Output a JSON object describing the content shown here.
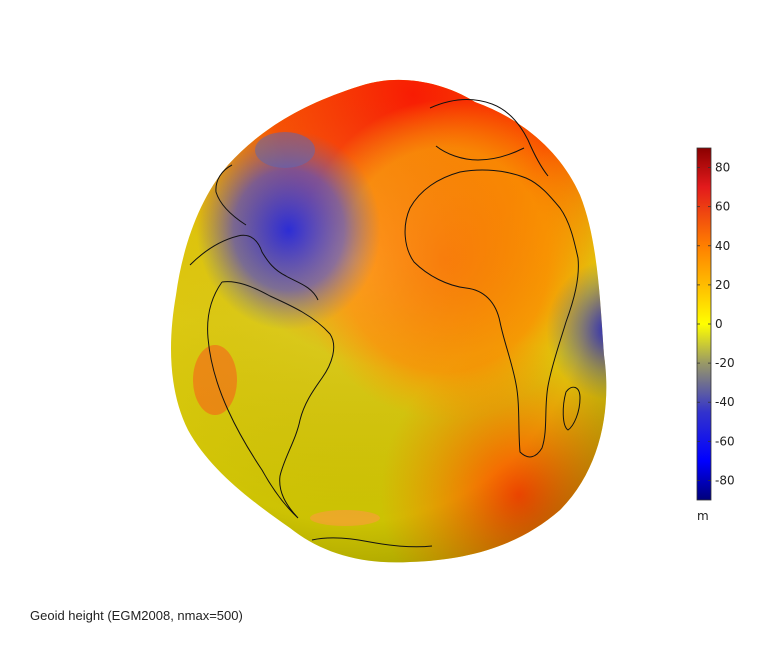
{
  "caption": "Geoid height (EGM2008, nmax=500)",
  "colorbar": {
    "unit": "m",
    "range": [
      -90,
      90
    ],
    "ticks": [
      80,
      60,
      40,
      20,
      0,
      -20,
      -40,
      -60,
      -80
    ],
    "stops": [
      {
        "value": 90,
        "color": "#8b0000"
      },
      {
        "value": 70,
        "color": "#e31a1c"
      },
      {
        "value": 40,
        "color": "#ff7f00"
      },
      {
        "value": 15,
        "color": "#ffcc00"
      },
      {
        "value": 0,
        "color": "#ffff00"
      },
      {
        "value": -20,
        "color": "#999966"
      },
      {
        "value": -45,
        "color": "#3333cc"
      },
      {
        "value": -70,
        "color": "#0000ff"
      },
      {
        "value": -90,
        "color": "#00007a"
      }
    ]
  },
  "colors": {
    "background": "#ffffff",
    "high": "#ff2200",
    "mid_high": "#ff8800",
    "neutral": "#dddd00",
    "low": "#3344cc",
    "coastline": "#111111"
  }
}
